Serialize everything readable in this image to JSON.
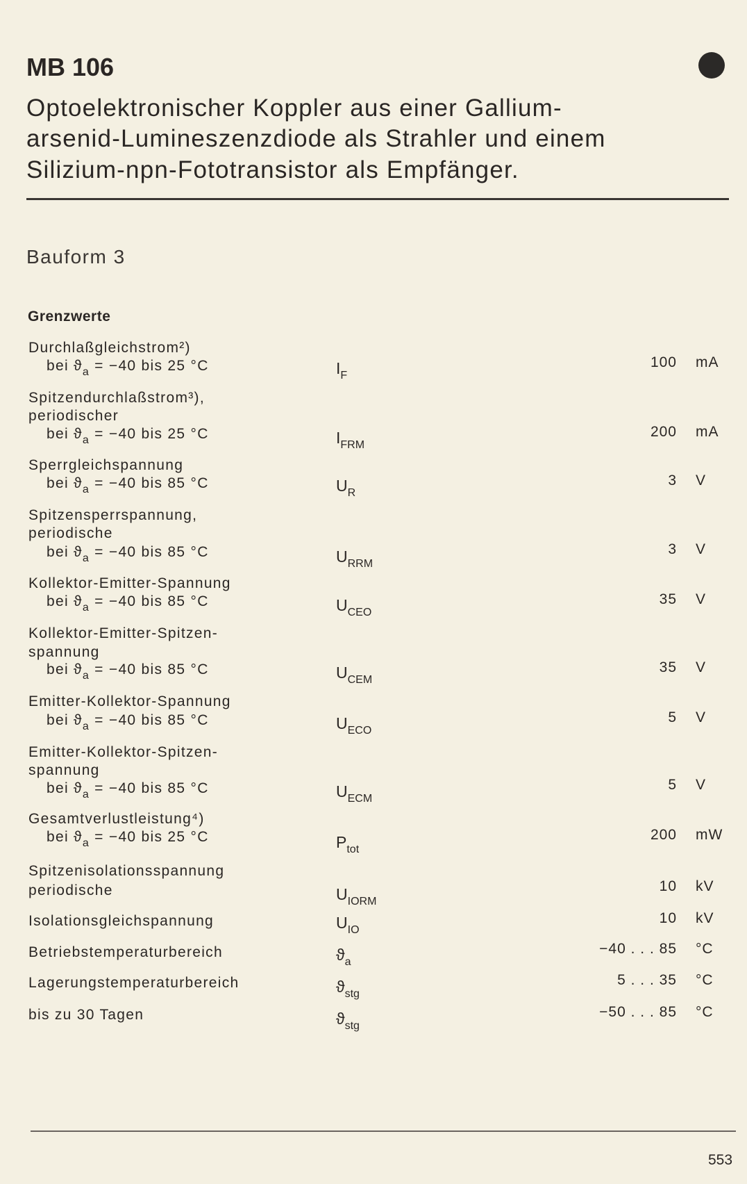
{
  "header": {
    "title": "MB 106",
    "marker_icon": "filled-circle"
  },
  "description": [
    "Optoelektronischer Koppler aus einer Gallium-",
    "arsenid-Lumineszenzdiode als Strahler und einem",
    "Silizium-npn-Fototransistor als Empfänger."
  ],
  "bauform": "Bauform 3",
  "section_title": "Grenzwerte",
  "rows": [
    {
      "lines": [
        "Durchlaßgleichstrom²)"
      ],
      "cond": {
        "sym": "ϑ",
        "sub": "a",
        "range": " = −40 bis 25 °C"
      },
      "symbol": {
        "main": "I",
        "sub": "F"
      },
      "value": "100",
      "unit": "mA"
    },
    {
      "lines": [
        "Spitzendurchlaßstrom³),",
        "periodischer"
      ],
      "cond": {
        "sym": "ϑ",
        "sub": "a",
        "range": " = −40 bis 25 °C"
      },
      "symbol": {
        "main": "I",
        "sub": "FRM"
      },
      "value": "200",
      "unit": "mA"
    },
    {
      "lines": [
        "Sperrgleichspannung"
      ],
      "cond": {
        "sym": "ϑ",
        "sub": "a",
        "range": " = −40 bis 85 °C"
      },
      "symbol": {
        "main": "U",
        "sub": "R"
      },
      "value": "3",
      "unit": "V"
    },
    {
      "lines": [
        "Spitzensperrspannung,",
        "periodische"
      ],
      "cond": {
        "sym": "ϑ",
        "sub": "a",
        "range": " = −40 bis 85 °C"
      },
      "symbol": {
        "main": "U",
        "sub": "RRM"
      },
      "value": "3",
      "unit": "V"
    },
    {
      "lines": [
        "Kollektor-Emitter-Spannung"
      ],
      "cond": {
        "sym": "ϑ",
        "sub": "a",
        "range": " = −40 bis 85 °C"
      },
      "symbol": {
        "main": "U",
        "sub": "CEO"
      },
      "value": "35",
      "unit": "V"
    },
    {
      "lines": [
        "Kollektor-Emitter-Spitzen-",
        "spannung"
      ],
      "cond": {
        "sym": "ϑ",
        "sub": "a",
        "range": " = −40 bis 85 °C"
      },
      "symbol": {
        "main": "U",
        "sub": "CEM"
      },
      "value": "35",
      "unit": "V"
    },
    {
      "lines": [
        "Emitter-Kollektor-Spannung"
      ],
      "cond": {
        "sym": "ϑ",
        "sub": "a",
        "range": " = −40 bis 85 °C"
      },
      "symbol": {
        "main": "U",
        "sub": "ECO"
      },
      "value": "5",
      "unit": "V"
    },
    {
      "lines": [
        "Emitter-Kollektor-Spitzen-",
        "spannung"
      ],
      "cond": {
        "sym": "ϑ",
        "sub": "a",
        "range": " = −40 bis 85 °C"
      },
      "symbol": {
        "main": "U",
        "sub": "ECM"
      },
      "value": "5",
      "unit": "V"
    },
    {
      "lines": [
        "Gesamtverlustleistung⁴)"
      ],
      "cond": {
        "sym": "ϑ",
        "sub": "a",
        "range": " = −40 bis 25 °C"
      },
      "symbol": {
        "main": "P",
        "sub": "tot"
      },
      "value": "200",
      "unit": "mW"
    },
    {
      "lines": [
        "Spitzenisolationsspannung",
        "periodische"
      ],
      "symbol": {
        "main": "U",
        "sub": "IORM"
      },
      "value": "10",
      "unit": "kV"
    },
    {
      "lines": [
        "Isolationsgleichspannung"
      ],
      "symbol": {
        "main": "U",
        "sub": "IO"
      },
      "value": "10",
      "unit": "kV"
    },
    {
      "lines": [
        "Betriebstemperaturbereich"
      ],
      "symbol": {
        "main": "ϑ",
        "sub": "a"
      },
      "value": "−40 . . . 85",
      "unit": "°C"
    },
    {
      "lines": [
        "Lagerungstemperaturbereich"
      ],
      "symbol": {
        "main": "ϑ",
        "sub": "stg"
      },
      "value": "5 . . . 35",
      "unit": "°C"
    },
    {
      "lines": [
        "bis zu 30 Tagen"
      ],
      "symbol": {
        "main": "ϑ",
        "sub": "stg"
      },
      "value": "−50 . . . 85",
      "unit": "°C"
    }
  ],
  "page_number": "553"
}
